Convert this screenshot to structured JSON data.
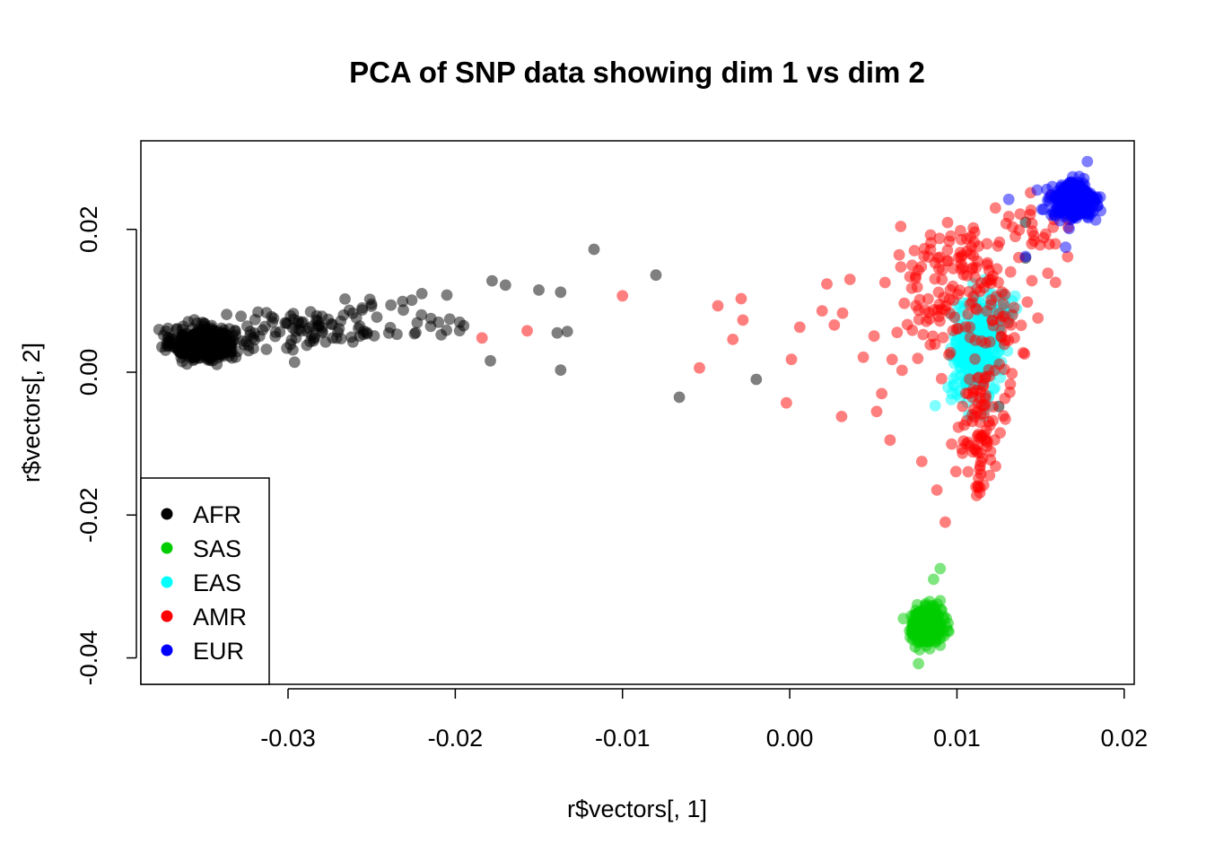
{
  "chart_data": {
    "type": "scatter",
    "title": "PCA of SNP data showing dim 1 vs dim 2",
    "xlabel": "r$vectors[, 1]",
    "ylabel": "r$vectors[, 2]",
    "xlim": [
      -0.0388,
      0.0206
    ],
    "ylim": [
      -0.0437,
      0.0324
    ],
    "xticks": [
      -0.03,
      -0.02,
      -0.01,
      0.0,
      0.01,
      0.02
    ],
    "xtick_labels": [
      "-0.03",
      "-0.02",
      "-0.01",
      "0.00",
      "0.01",
      "0.02"
    ],
    "yticks": [
      -0.04,
      -0.02,
      0.0,
      0.02
    ],
    "ytick_labels": [
      "-0.04",
      "-0.02",
      "0.00",
      "0.02"
    ],
    "grid": false,
    "legend": {
      "position": "bottom-left",
      "entries": [
        {
          "label": "AFR",
          "color": "#000000"
        },
        {
          "label": "SAS",
          "color": "#00CD00"
        },
        {
          "label": "EAS",
          "color": "#00FFFF"
        },
        {
          "label": "AMR",
          "color": "#FF0000"
        },
        {
          "label": "EUR",
          "color": "#0000FF"
        }
      ]
    },
    "series": [
      {
        "name": "AFR",
        "color": "#000000",
        "clusters": [
          {
            "cx": -0.035,
            "cy": 0.004,
            "sx": 0.0009,
            "sy": 0.0011,
            "n": 520
          },
          {
            "cx": -0.029,
            "cy": 0.006,
            "sx": 0.003,
            "sy": 0.0014,
            "n": 90
          },
          {
            "cx": -0.024,
            "cy": 0.008,
            "sx": 0.002,
            "sy": 0.0014,
            "n": 25
          }
        ],
        "points": [
          {
            "x": -0.0117,
            "y": 0.0172
          },
          {
            "x": -0.008,
            "y": 0.0136
          },
          {
            "x": -0.0178,
            "y": 0.0128
          },
          {
            "x": -0.017,
            "y": 0.0122
          },
          {
            "x": -0.015,
            "y": 0.0115
          },
          {
            "x": -0.0137,
            "y": 0.0112
          },
          {
            "x": -0.0139,
            "y": 0.0055
          },
          {
            "x": -0.0133,
            "y": 0.0057
          },
          {
            "x": -0.0179,
            "y": 0.0016
          },
          {
            "x": -0.0137,
            "y": 0.0003
          },
          {
            "x": -0.0066,
            "y": -0.0035
          },
          {
            "x": -0.002,
            "y": -0.001
          },
          {
            "x": -0.0195,
            "y": 0.0065
          },
          {
            "x": -0.021,
            "y": 0.007
          },
          {
            "x": -0.022,
            "y": 0.011
          },
          {
            "x": -0.0205,
            "y": 0.0108
          },
          {
            "x": 0.0125,
            "y": -0.0048
          },
          {
            "x": 0.0141,
            "y": 0.021
          },
          {
            "x": 0.0141,
            "y": 0.016
          }
        ]
      },
      {
        "name": "SAS",
        "color": "#00CD00",
        "clusters": [
          {
            "cx": 0.0082,
            "cy": -0.0355,
            "sx": 0.00045,
            "sy": 0.0012,
            "n": 420
          }
        ],
        "points": [
          {
            "x": 0.009,
            "y": -0.0275
          },
          {
            "x": 0.0086,
            "y": -0.029
          },
          {
            "x": 0.0077,
            "y": -0.0408
          },
          {
            "x": 0.0068,
            "y": -0.0345
          },
          {
            "x": 0.009,
            "y": -0.032
          }
        ]
      },
      {
        "name": "EAS",
        "color": "#00FFFF",
        "clusters": [
          {
            "cx": 0.0112,
            "cy": 0.003,
            "sx": 0.0007,
            "sy": 0.003,
            "n": 330
          },
          {
            "cx": 0.0125,
            "cy": 0.0085,
            "sx": 0.0006,
            "sy": 0.0015,
            "n": 40
          }
        ],
        "points": [
          {
            "x": 0.0087,
            "y": -0.0047
          },
          {
            "x": 0.0097,
            "y": -0.003
          },
          {
            "x": 0.0107,
            "y": -0.006
          },
          {
            "x": 0.0133,
            "y": 0.01
          }
        ]
      },
      {
        "name": "AMR",
        "color": "#FF0000",
        "clusters": [
          {
            "cx": 0.0105,
            "cy": 0.015,
            "sx": 0.002,
            "sy": 0.003,
            "n": 95
          },
          {
            "cx": 0.0085,
            "cy": 0.006,
            "sx": 0.0025,
            "sy": 0.004,
            "n": 55
          },
          {
            "cx": 0.0113,
            "cy": -0.008,
            "sx": 0.0006,
            "sy": 0.0045,
            "n": 80
          },
          {
            "cx": 0.0125,
            "cy": 0.005,
            "sx": 0.001,
            "sy": 0.006,
            "n": 45
          },
          {
            "cx": 0.015,
            "cy": 0.02,
            "sx": 0.001,
            "sy": 0.002,
            "n": 20
          }
        ],
        "points": [
          {
            "x": -0.0184,
            "y": 0.0048
          },
          {
            "x": -0.0157,
            "y": 0.0058
          },
          {
            "x": -0.01,
            "y": 0.0107
          },
          {
            "x": -0.0043,
            "y": 0.0093
          },
          {
            "x": -0.0029,
            "y": 0.0103
          },
          {
            "x": -0.0028,
            "y": 0.0073
          },
          {
            "x": -0.0034,
            "y": 0.0046
          },
          {
            "x": -0.0054,
            "y": 0.0006
          },
          {
            "x": 0.0006,
            "y": 0.0063
          },
          {
            "x": 0.0001,
            "y": 0.0018
          },
          {
            "x": -0.0002,
            "y": -0.0043
          },
          {
            "x": 0.0031,
            "y": -0.0062
          },
          {
            "x": 0.0036,
            "y": 0.013
          },
          {
            "x": 0.006,
            "y": -0.0095
          },
          {
            "x": 0.0052,
            "y": -0.0055
          },
          {
            "x": 0.0055,
            "y": -0.003
          },
          {
            "x": 0.0093,
            "y": -0.021
          },
          {
            "x": 0.0088,
            "y": -0.0165
          },
          {
            "x": 0.0079,
            "y": -0.0125
          },
          {
            "x": 0.0123,
            "y": 0.023
          },
          {
            "x": 0.0131,
            "y": 0.0218
          }
        ]
      },
      {
        "name": "EUR",
        "color": "#0000FF",
        "clusters": [
          {
            "cx": 0.017,
            "cy": 0.024,
            "sx": 0.0006,
            "sy": 0.0012,
            "n": 480
          }
        ],
        "points": [
          {
            "x": 0.0131,
            "y": 0.0242
          },
          {
            "x": 0.0141,
            "y": 0.0162
          },
          {
            "x": 0.0148,
            "y": 0.0255
          },
          {
            "x": 0.0157,
            "y": 0.026
          },
          {
            "x": 0.0165,
            "y": 0.0175
          },
          {
            "x": 0.0178,
            "y": 0.0295
          }
        ]
      }
    ]
  }
}
